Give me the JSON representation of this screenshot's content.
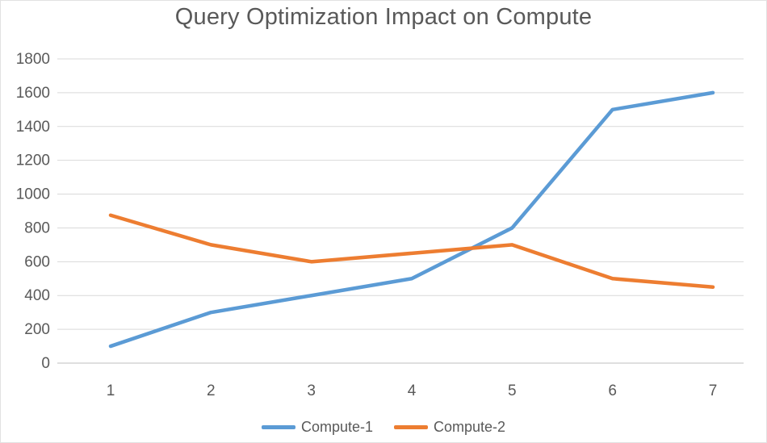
{
  "chart_data": {
    "type": "line",
    "title": "Query Optimization Impact on Compute",
    "x": [
      "1",
      "2",
      "3",
      "4",
      "5",
      "6",
      "7"
    ],
    "series": [
      {
        "name": "Compute-1",
        "color": "#5B9BD5",
        "values": [
          100,
          300,
          400,
          500,
          800,
          1500,
          1600
        ]
      },
      {
        "name": "Compute-2",
        "color": "#ED7D31",
        "values": [
          875,
          700,
          600,
          650,
          700,
          500,
          450
        ]
      }
    ],
    "ylim": [
      0,
      1800
    ],
    "yticks": [
      0,
      200,
      400,
      600,
      800,
      1000,
      1200,
      1400,
      1600,
      1800
    ],
    "grid": true,
    "legend_position": "bottom",
    "xlabel": "",
    "ylabel": ""
  },
  "colors": {
    "title_text": "#595959",
    "axis_text": "#595959",
    "gridline": "#d9d9d9",
    "axis_line": "#bfbfbf",
    "background": "#ffffff"
  }
}
